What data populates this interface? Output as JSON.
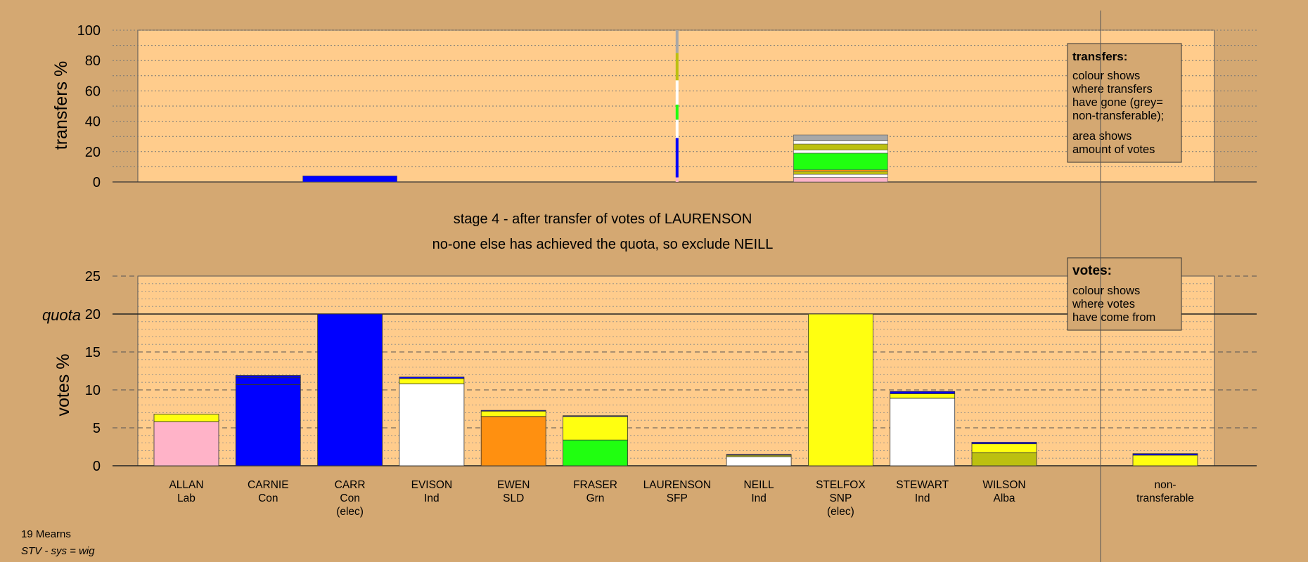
{
  "colors": {
    "background": "#d4a872",
    "panel": "#ffcc8c",
    "Lab": "#ffb3c8",
    "Con": "#0000ff",
    "Ind": "#ffffff",
    "SLD": "#ff9010",
    "Grn": "#20ff10",
    "SFP": "#dd2222",
    "SNP": "#ffff10",
    "Alba": "#bcc010",
    "nontransferable": "#a8a8a8"
  },
  "footer": {
    "ward": "19 Mearns",
    "system": "STV - sys = wig"
  },
  "headline": {
    "line1": "stage 4 - after transfer of votes of LAURENSON",
    "line2": "no-one else has achieved the quota, so exclude NEILL"
  },
  "legend_transfers": {
    "title": "transfers:",
    "lines": [
      "colour shows",
      "where transfers",
      "have gone (grey=",
      "non-transferable);",
      "area shows",
      "amount of votes"
    ]
  },
  "legend_votes": {
    "title": "votes:",
    "lines": [
      "colour shows",
      "where votes",
      "have come from"
    ]
  },
  "chart_data": [
    {
      "type": "bar",
      "stacked": true,
      "ylabel": "transfers %",
      "ylim": [
        0,
        100
      ],
      "yticks": [
        0,
        20,
        40,
        60,
        80,
        100
      ],
      "grid": "dotted",
      "columns": [
        {
          "slot": 2,
          "segments": [
            {
              "party": "Con",
              "value": 4
            }
          ]
        },
        {
          "slot": 6,
          "thin": true,
          "segments": [
            {
              "party": "Lab",
              "value": 3
            },
            {
              "party": "Con",
              "value": 26
            },
            {
              "party": "Ind",
              "value": 12
            },
            {
              "party": "Grn",
              "value": 10
            },
            {
              "party": "Ind",
              "value": 16
            },
            {
              "party": "Alba",
              "value": 18
            },
            {
              "party": "nontransferable",
              "value": 15
            }
          ]
        },
        {
          "slot": 8,
          "segments": [
            {
              "party": "Lab",
              "value": 3
            },
            {
              "party": "Ind",
              "value": 2
            },
            {
              "party": "Alba",
              "value": 2
            },
            {
              "party": "SLD",
              "value": 1
            },
            {
              "party": "Grn",
              "value": 11
            },
            {
              "party": "Ind",
              "value": 2
            },
            {
              "party": "Alba",
              "value": 4
            },
            {
              "party": "Ind",
              "value": 2
            },
            {
              "party": "nontransferable",
              "value": 4
            }
          ]
        }
      ]
    },
    {
      "type": "bar",
      "stacked": true,
      "ylabel": "votes %",
      "ylim": [
        0,
        25
      ],
      "yticks": [
        0,
        5,
        10,
        15,
        20,
        25
      ],
      "quota": 20,
      "quota_label": "quota",
      "grid": "dashed",
      "candidates": [
        {
          "name": "ALLAN",
          "party": "Lab",
          "note": "",
          "segments": [
            {
              "party": "Lab",
              "value": 5.8
            },
            {
              "party": "SNP",
              "value": 1.0
            }
          ]
        },
        {
          "name": "CARNIE",
          "party": "Con",
          "note": "",
          "segments": [
            {
              "party": "Con",
              "value": 10.7
            },
            {
              "party": "Con",
              "value": 0.9
            },
            {
              "party": "Con",
              "value": 0.3
            }
          ]
        },
        {
          "name": "CARR",
          "party": "Con",
          "note": "(elec)",
          "segments": [
            {
              "party": "Con",
              "value": 20
            }
          ]
        },
        {
          "name": "EVISON",
          "party": "Ind",
          "note": "",
          "segments": [
            {
              "party": "Ind",
              "value": 10.8
            },
            {
              "party": "SNP",
              "value": 0.7
            },
            {
              "party": "Con",
              "value": 0.2
            }
          ]
        },
        {
          "name": "EWEN",
          "party": "SLD",
          "note": "",
          "segments": [
            {
              "party": "SLD",
              "value": 6.5
            },
            {
              "party": "SNP",
              "value": 0.7
            },
            {
              "party": "Con",
              "value": 0.1
            }
          ]
        },
        {
          "name": "FRASER",
          "party": "Grn",
          "note": "",
          "segments": [
            {
              "party": "Grn",
              "value": 3.4
            },
            {
              "party": "SNP",
              "value": 3.1
            },
            {
              "party": "Con",
              "value": 0.1
            }
          ]
        },
        {
          "name": "LAURENSON",
          "party": "SFP",
          "note": "",
          "segments": []
        },
        {
          "name": "NEILL",
          "party": "Ind",
          "note": "",
          "segments": [
            {
              "party": "Ind",
              "value": 1.2
            },
            {
              "party": "Alba",
              "value": 0.2
            },
            {
              "party": "Con",
              "value": 0.1
            }
          ]
        },
        {
          "name": "STELFOX",
          "party": "SNP",
          "note": "(elec)",
          "segments": [
            {
              "party": "SNP",
              "value": 20
            }
          ]
        },
        {
          "name": "STEWART",
          "party": "Ind",
          "note": "",
          "segments": [
            {
              "party": "Ind",
              "value": 8.9
            },
            {
              "party": "SNP",
              "value": 0.6
            },
            {
              "party": "Con",
              "value": 0.3
            }
          ]
        },
        {
          "name": "WILSON",
          "party": "Alba",
          "note": "",
          "segments": [
            {
              "party": "Alba",
              "value": 1.7
            },
            {
              "party": "SNP",
              "value": 1.2
            },
            {
              "party": "Con",
              "value": 0.2
            }
          ]
        }
      ],
      "nontransferable": {
        "label_line1": "non-",
        "label_line2": "transferable",
        "segments": [
          {
            "party": "SNP",
            "value": 1.4
          },
          {
            "party": "Con",
            "value": 0.2
          }
        ]
      }
    }
  ]
}
